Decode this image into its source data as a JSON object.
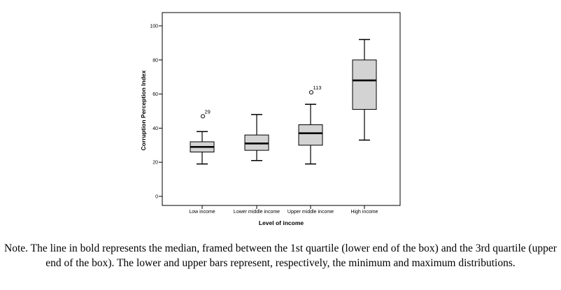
{
  "chart_data": {
    "type": "boxplot",
    "xlabel": "Level of income",
    "ylabel": "Corruption Perception Index",
    "ylim": [
      0,
      100
    ],
    "yticks": [
      0,
      20,
      40,
      60,
      80,
      100
    ],
    "grid": false,
    "box_color": "#d3d3d3",
    "categories": [
      "Low income",
      "Lower middle income",
      "Upper middle income",
      "High income"
    ],
    "boxes": [
      {
        "category": "Low income",
        "min": 19,
        "q1": 26,
        "median": 29,
        "q3": 32,
        "max": 38,
        "outliers": [
          {
            "value": 47,
            "label": "29"
          }
        ]
      },
      {
        "category": "Lower middle income",
        "min": 21,
        "q1": 27,
        "median": 31,
        "q3": 36,
        "max": 48,
        "outliers": []
      },
      {
        "category": "Upper middle income",
        "min": 19,
        "q1": 30,
        "median": 37,
        "q3": 42,
        "max": 54,
        "outliers": [
          {
            "value": 61,
            "label": "113"
          }
        ]
      },
      {
        "category": "High income",
        "min": 33,
        "q1": 51,
        "median": 68,
        "q3": 80,
        "max": 92,
        "outliers": []
      }
    ]
  },
  "note": "Note. The line in bold represents the median, framed between the 1st quartile (lower end of the box) and the 3rd quartile (upper end of the box). The lower and upper bars represent, respectively, the minimum and maximum distributions."
}
